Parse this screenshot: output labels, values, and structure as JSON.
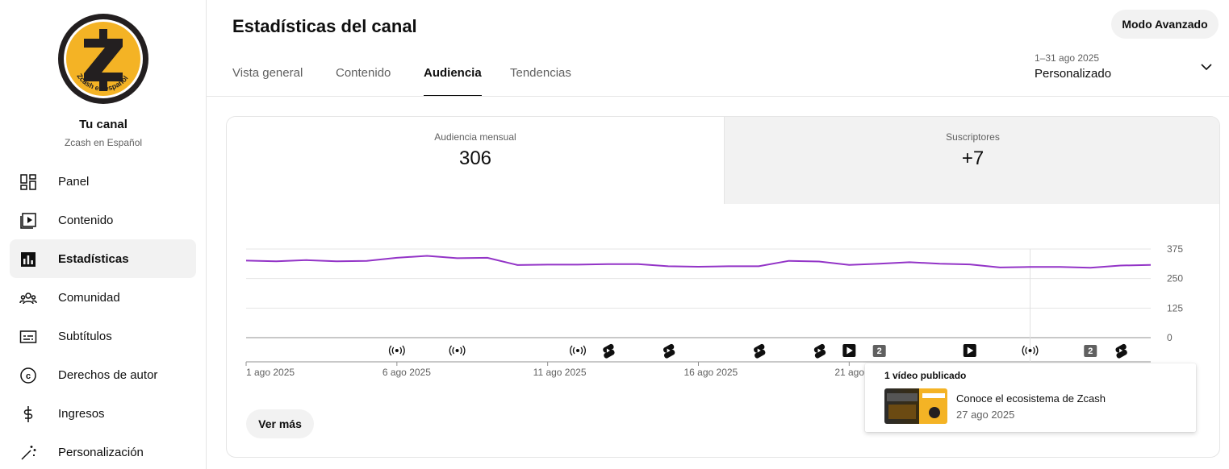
{
  "sidebar": {
    "channel_title": "Tu canal",
    "channel_name": "Zcash en Español",
    "avatar_text": "Zcash en español",
    "items": [
      {
        "label": "Panel",
        "icon": "dashboard-icon"
      },
      {
        "label": "Contenido",
        "icon": "content-icon"
      },
      {
        "label": "Estadísticas",
        "icon": "analytics-icon",
        "active": true
      },
      {
        "label": "Comunidad",
        "icon": "community-icon"
      },
      {
        "label": "Subtítulos",
        "icon": "subtitles-icon"
      },
      {
        "label": "Derechos de autor",
        "icon": "copyright-icon"
      },
      {
        "label": "Ingresos",
        "icon": "dollar-icon"
      },
      {
        "label": "Personalización",
        "icon": "magic-wand-icon"
      }
    ]
  },
  "header": {
    "title": "Estadísticas del canal",
    "advanced_button": "Modo Avanzado",
    "tabs": [
      "Vista general",
      "Contenido",
      "Audiencia",
      "Tendencias"
    ],
    "active_tab": "Audiencia",
    "date_range": "1–31 ago 2025",
    "date_mode": "Personalizado"
  },
  "metrics": [
    {
      "label": "Audiencia mensual",
      "value": "306"
    },
    {
      "label": "Suscriptores",
      "value": "+7"
    }
  ],
  "more_button": "Ver más",
  "tooltip": {
    "title": "1 vídeo publicado",
    "video_title": "Conoce el ecosistema de Zcash",
    "video_date": "27 ago 2025"
  },
  "colors": {
    "line": "#9334c7",
    "accent": "#f4b325"
  },
  "chart_data": {
    "type": "line",
    "x": [
      "1 ago",
      "2 ago",
      "3 ago",
      "4 ago",
      "5 ago",
      "6 ago",
      "7 ago",
      "8 ago",
      "9 ago",
      "10 ago",
      "11 ago",
      "12 ago",
      "13 ago",
      "14 ago",
      "15 ago",
      "16 ago",
      "17 ago",
      "18 ago",
      "19 ago",
      "20 ago",
      "21 ago",
      "22 ago",
      "23 ago",
      "24 ago",
      "25 ago",
      "26 ago",
      "27 ago",
      "28 ago",
      "29 ago",
      "30 ago",
      "31 ago"
    ],
    "series": [
      {
        "values": [
          326,
          323,
          328,
          323,
          325,
          338,
          346,
          336,
          338,
          307,
          309,
          309,
          311,
          311,
          302,
          300,
          302,
          302,
          325,
          322,
          308,
          313,
          319,
          313,
          310,
          297,
          299,
          299,
          296,
          305,
          308
        ]
      }
    ],
    "x_tick_labels": [
      "1 ago 2025",
      "6 ago 2025",
      "11 ago 2025",
      "16 ago 2025",
      "21 ago 2025"
    ],
    "y_ticks": [
      0,
      125,
      250,
      375
    ],
    "ylim": [
      0,
      375
    ],
    "grid": true,
    "hover_x": "27 ago",
    "events": [
      {
        "x": "6 ago",
        "icon": "live-icon"
      },
      {
        "x": "8 ago",
        "icon": "live-icon"
      },
      {
        "x": "12 ago",
        "icon": "live-icon"
      },
      {
        "x": "13 ago",
        "icon": "shorts-icon"
      },
      {
        "x": "15 ago",
        "icon": "shorts-icon"
      },
      {
        "x": "18 ago",
        "icon": "shorts-icon"
      },
      {
        "x": "20 ago",
        "icon": "shorts-icon"
      },
      {
        "x": "21 ago",
        "icon": "video-icon"
      },
      {
        "x": "22 ago",
        "icon": "count-badge",
        "label": "2"
      },
      {
        "x": "25 ago",
        "icon": "video-icon"
      },
      {
        "x": "27 ago",
        "icon": "live-icon"
      },
      {
        "x": "29 ago",
        "icon": "count-badge",
        "label": "2"
      },
      {
        "x": "30 ago",
        "icon": "shorts-icon"
      }
    ]
  }
}
